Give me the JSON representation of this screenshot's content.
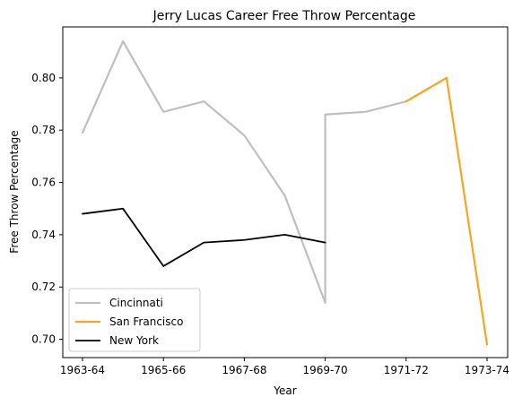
{
  "chart_data": {
    "type": "line",
    "title": "Jerry Lucas Career Free Throw Percentage",
    "xlabel": "Year",
    "ylabel": "Free Throw Percentage",
    "x_ticks": [
      "1963-64",
      "1965-66",
      "1967-68",
      "1969-70",
      "1971-72",
      "1973-74"
    ],
    "ylim": [
      0.693,
      0.8195
    ],
    "y_ticks": [
      0.7,
      0.72,
      0.74,
      0.76,
      0.78,
      0.8
    ],
    "grid": false,
    "legend_position": "lower-left",
    "series": [
      {
        "name": "Cincinnati",
        "color": "#bfbfbf",
        "points": [
          {
            "x": "1963-64",
            "y": 0.779
          },
          {
            "x": "1964-65",
            "y": 0.814
          },
          {
            "x": "1965-66",
            "y": 0.787
          },
          {
            "x": "1966-67",
            "y": 0.791
          },
          {
            "x": "1967-68",
            "y": 0.778
          },
          {
            "x": "1968-69",
            "y": 0.755
          },
          {
            "x": "1969-70",
            "y": 0.714
          },
          {
            "x": "1969-70",
            "y": 0.786
          },
          {
            "x": "1970-71",
            "y": 0.787
          },
          {
            "x": "1971-72",
            "y": 0.791
          }
        ]
      },
      {
        "name": "San Francisco",
        "color": "#f5a623",
        "points": [
          {
            "x": "1971-72",
            "y": 0.791
          },
          {
            "x": "1972-73",
            "y": 0.8
          },
          {
            "x": "1973-74",
            "y": 0.698
          }
        ]
      },
      {
        "name": "New York",
        "color": "#000000",
        "points": [
          {
            "x": "1963-64",
            "y": 0.748
          },
          {
            "x": "1964-65",
            "y": 0.75
          },
          {
            "x": "1965-66",
            "y": 0.728
          },
          {
            "x": "1966-67",
            "y": 0.737
          },
          {
            "x": "1967-68",
            "y": 0.738
          },
          {
            "x": "1968-69",
            "y": 0.74
          },
          {
            "x": "1969-70",
            "y": 0.737
          }
        ]
      }
    ]
  }
}
